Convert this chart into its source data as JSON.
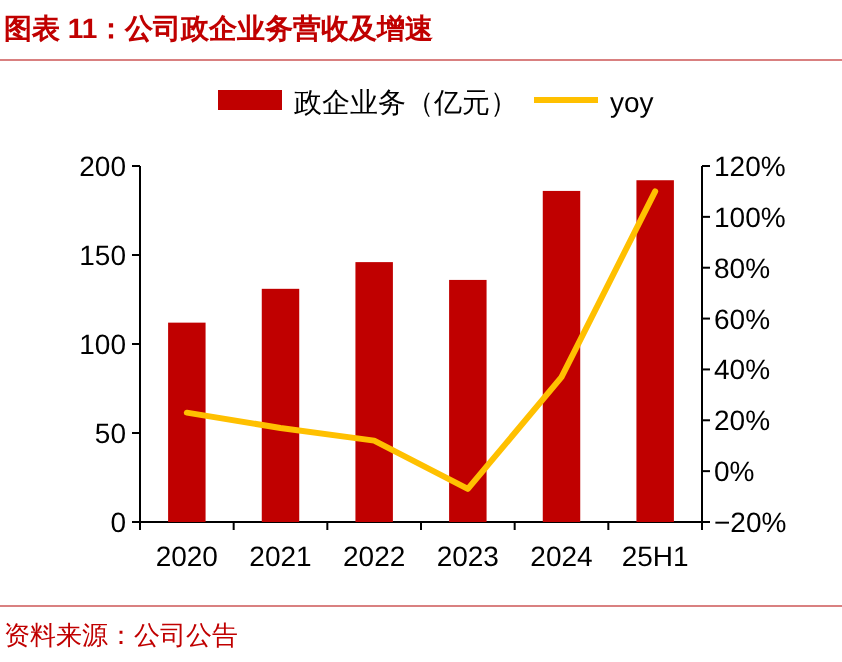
{
  "chart_data": {
    "type": "bar",
    "title": "图表 11：公司政企业务营收及增速",
    "categories": [
      "2020",
      "2021",
      "2022",
      "2023",
      "2024",
      "25H1"
    ],
    "series": [
      {
        "name": "政企业务（亿元）",
        "color": "#c00000",
        "values": [
          112,
          131,
          146,
          136,
          186,
          192
        ]
      },
      {
        "name": "yoy",
        "type": "line",
        "axis": "y2",
        "color": "#ffc000",
        "values": [
          23,
          17,
          12,
          -7,
          37,
          110
        ]
      }
    ],
    "ylim": [
      0,
      200
    ],
    "yticks": [
      0,
      50,
      100,
      150,
      200
    ],
    "y2lim": [
      -20,
      120
    ],
    "y2ticks": [
      {
        "value": -20,
        "label": "−20%"
      },
      {
        "value": 0,
        "label": "0%"
      },
      {
        "value": 20,
        "label": "20%"
      },
      {
        "value": 40,
        "label": "40%"
      },
      {
        "value": 60,
        "label": "60%"
      },
      {
        "value": 80,
        "label": "80%"
      },
      {
        "value": 100,
        "label": "100%"
      },
      {
        "value": 120,
        "label": "120%"
      }
    ],
    "grid": false,
    "legend": "top",
    "marker": "none",
    "line_style": "solid",
    "annotations": [
      "资料来源：公司公告"
    ]
  }
}
